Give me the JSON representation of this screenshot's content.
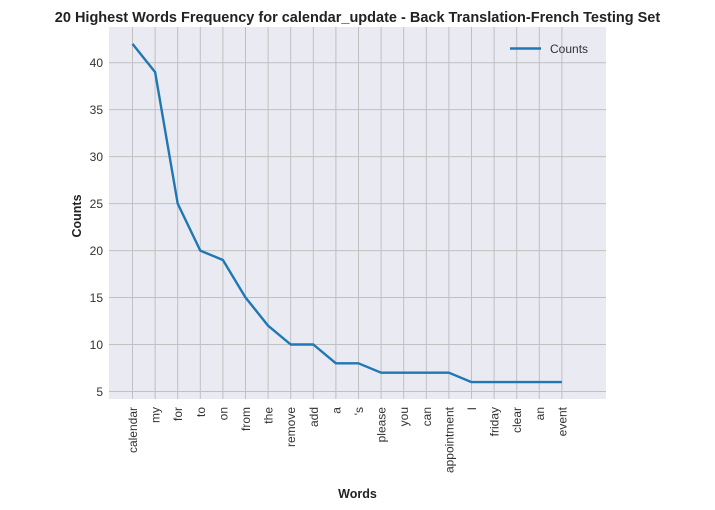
{
  "chart_data": {
    "type": "line",
    "title": "20 Highest Words Frequency for calendar_update - Back Translation-French Testing Set",
    "xlabel": "Words",
    "ylabel": "Counts",
    "categories": [
      "calendar",
      "my",
      "for",
      "to",
      "on",
      "from",
      "the",
      "remove",
      "add",
      "a",
      "'s",
      "please",
      "you",
      "can",
      "appointment",
      "I",
      "friday",
      "clear",
      "an",
      "event"
    ],
    "series": [
      {
        "name": "Counts",
        "values": [
          42,
          39,
          25,
          20,
          19,
          15,
          12,
          10,
          10,
          8,
          8,
          7,
          7,
          7,
          7,
          6,
          6,
          6,
          6,
          6
        ]
      }
    ],
    "ylim": [
      4.2,
      43.8
    ],
    "yticks": [
      5,
      10,
      15,
      20,
      25,
      30,
      35,
      40
    ],
    "grid": true,
    "legend": "top-right",
    "colors": {
      "line": "#1f77b4",
      "plot_background": "#eaeaf2",
      "grid": "#c0c0c0"
    }
  }
}
